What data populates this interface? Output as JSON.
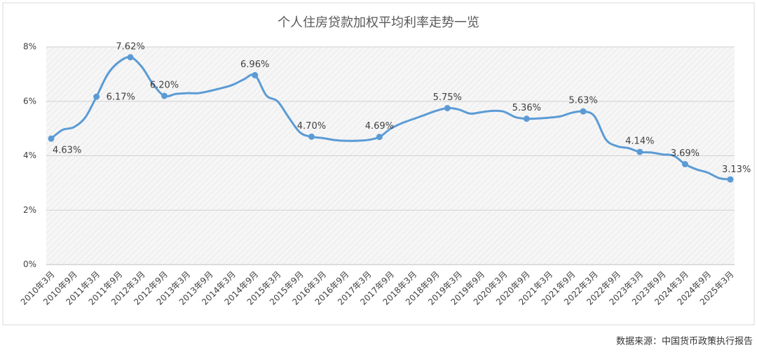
{
  "chart_data": {
    "type": "line",
    "title": "个人住房贷款加权平均利率走势一览",
    "source": "数据来源：中国货币政策执行报告",
    "categories": [
      "2010年3月",
      null,
      "2010年9月",
      null,
      "2011年3月",
      null,
      "2011年9月",
      null,
      "2012年3月",
      null,
      "2012年9月",
      null,
      "2013年3月",
      null,
      "2013年9月",
      null,
      "2014年3月",
      null,
      "2014年9月",
      null,
      "2015年3月",
      null,
      "2015年9月",
      null,
      "2016年3月",
      null,
      "2016年9月",
      null,
      "2017年3月",
      null,
      "2017年9月",
      null,
      "2018年3月",
      null,
      "2018年9月",
      null,
      "2019年3月",
      null,
      "2019年9月",
      null,
      "2020年3月",
      null,
      "2020年9月",
      null,
      "2021年3月",
      null,
      "2021年9月",
      null,
      "2022年3月",
      null,
      "2022年9月",
      null,
      "2023年3月",
      null,
      "2023年9月",
      null,
      "2024年3月",
      null,
      "2024年9月",
      null,
      "2025年3月"
    ],
    "series": [
      {
        "color": "#5b9bd5",
        "values": [
          4.63,
          4.95,
          5.05,
          5.4,
          6.17,
          7.0,
          7.45,
          7.62,
          7.27,
          6.63,
          6.2,
          6.27,
          6.3,
          6.3,
          6.38,
          6.48,
          6.6,
          6.8,
          6.96,
          6.22,
          6.0,
          5.4,
          4.85,
          4.7,
          4.65,
          4.58,
          4.55,
          4.55,
          4.58,
          4.69,
          5.0,
          5.2,
          5.35,
          5.5,
          5.65,
          5.75,
          5.7,
          5.55,
          5.6,
          5.65,
          5.62,
          5.42,
          5.36,
          5.37,
          5.4,
          5.45,
          5.58,
          5.63,
          5.45,
          4.6,
          4.35,
          4.28,
          4.14,
          4.12,
          4.05,
          4.0,
          3.69,
          3.5,
          3.38,
          3.18,
          3.13
        ],
        "value_labels": [
          "4.63%",
          null,
          null,
          null,
          "6.17%",
          null,
          null,
          "7.62%",
          null,
          null,
          "6.20%",
          null,
          null,
          null,
          null,
          null,
          null,
          null,
          "6.96%",
          null,
          null,
          null,
          null,
          "4.70%",
          null,
          null,
          null,
          null,
          null,
          "4.69%",
          null,
          null,
          null,
          null,
          null,
          "5.75%",
          null,
          null,
          null,
          null,
          null,
          null,
          "5.36%",
          null,
          null,
          null,
          null,
          "5.63%",
          null,
          null,
          null,
          null,
          "4.14%",
          null,
          null,
          null,
          "3.69%",
          null,
          null,
          null,
          "3.13%"
        ]
      }
    ],
    "ylim": [
      0,
      8
    ],
    "yticks": [
      {
        "value": 0,
        "label": "0%"
      },
      {
        "value": 2,
        "label": "2%"
      },
      {
        "value": 4,
        "label": "4%"
      },
      {
        "value": 6,
        "label": "6%"
      },
      {
        "value": 8,
        "label": "8%"
      }
    ],
    "grid": true
  }
}
